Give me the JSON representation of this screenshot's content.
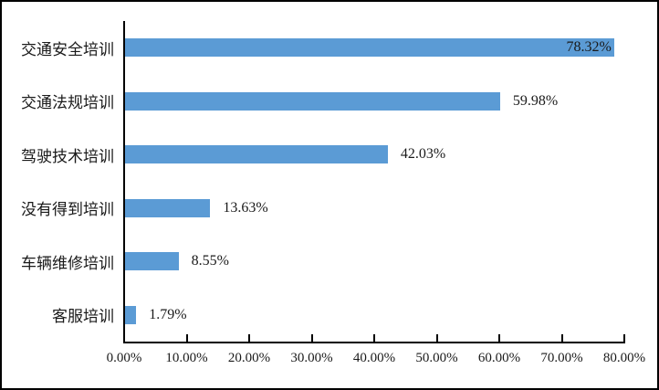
{
  "chart_data": {
    "type": "bar",
    "orientation": "horizontal",
    "title": "",
    "xlabel": "",
    "ylabel": "",
    "categories": [
      "交通安全培训",
      "交通法规培训",
      "驾驶技术培训",
      "没有得到培训",
      "车辆维修培训",
      "客服培训"
    ],
    "values": [
      78.32,
      59.98,
      42.03,
      13.63,
      8.55,
      1.79
    ],
    "value_labels": [
      "78.32%",
      "59.98%",
      "42.03%",
      "13.63%",
      "8.55%",
      "1.79%"
    ],
    "x_tick_values": [
      0,
      10,
      20,
      30,
      40,
      50,
      60,
      70,
      80
    ],
    "x_tick_labels": [
      "0.00%",
      "10.00%",
      "20.00%",
      "30.00%",
      "40.00%",
      "50.00%",
      "60.00%",
      "70.00%",
      "80.00%"
    ],
    "xlim": [
      0,
      80
    ],
    "grid": false,
    "legend": false,
    "colors": {
      "bar": "#5B9BD5",
      "axis": "#000000",
      "text": "#1a1a1a",
      "background": "#ffffff",
      "border": "#000000"
    }
  }
}
